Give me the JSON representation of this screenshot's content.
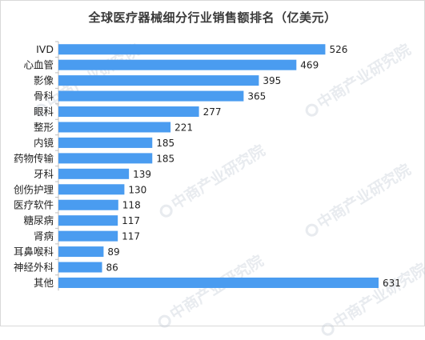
{
  "chart_data": {
    "type": "bar",
    "orientation": "horizontal",
    "title": "全球医疗器械细分行业销售额排名（亿美元）",
    "xlabel": "",
    "ylabel": "",
    "xlim": [
      0,
      631
    ],
    "categories": [
      "IVD",
      "心血管",
      "影像",
      "骨科",
      "眼科",
      "整形",
      "内镜",
      "药物传输",
      "牙科",
      "创伤护理",
      "医疗软件",
      "糖尿病",
      "肾病",
      "耳鼻喉科",
      "神经外科",
      "其他"
    ],
    "values": [
      526,
      469,
      395,
      365,
      277,
      221,
      185,
      185,
      139,
      130,
      118,
      117,
      117,
      89,
      86,
      631
    ],
    "data_labels": true,
    "grid": false,
    "legend": "none",
    "bar_color": "#4a9cf0"
  },
  "watermark": {
    "text": "中商产业研究院"
  },
  "colors": {
    "bar": "#4a9cf0",
    "text": "#222222",
    "axis": "#bfbfbf"
  }
}
